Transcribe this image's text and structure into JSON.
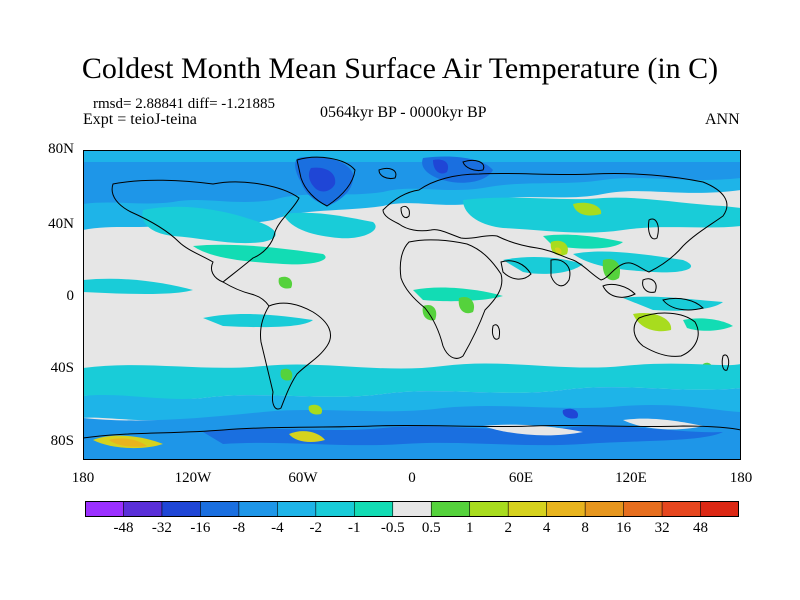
{
  "title": "Coldest Month Mean Surface Air Temperature (in C)",
  "stats": {
    "rmsd": "rmsd= 2.88841 diff= -1.21885",
    "experiment": "Expt = teioJ-teina"
  },
  "period": "0564kyr BP - 0000kyr BP",
  "season": "ANN",
  "lat_labels": [
    "80N",
    "40N",
    "0",
    "40S",
    "80S"
  ],
  "lon_labels": [
    "180",
    "120W",
    "60W",
    "0",
    "60E",
    "120E",
    "180"
  ],
  "colorbar": {
    "labels": [
      "-48",
      "-32",
      "-16",
      "-8",
      "-4",
      "-2",
      "-1",
      "-0.5",
      "0.5",
      "1",
      "2",
      "4",
      "8",
      "16",
      "32",
      "48"
    ],
    "colors": [
      "#9b30ff",
      "#5a2fd8",
      "#1f46d6",
      "#1a6fe0",
      "#1e96e8",
      "#1eb4e8",
      "#19ccd8",
      "#12dcb4",
      "#e6e6e6",
      "#55d23c",
      "#a8dc1e",
      "#d6d21e",
      "#e8b41e",
      "#e6961e",
      "#e66e1e",
      "#e6461e",
      "#dc2814"
    ]
  },
  "legend_colors": {
    "neutral": "#e6e6e6",
    "land_outline": "#000000"
  }
}
